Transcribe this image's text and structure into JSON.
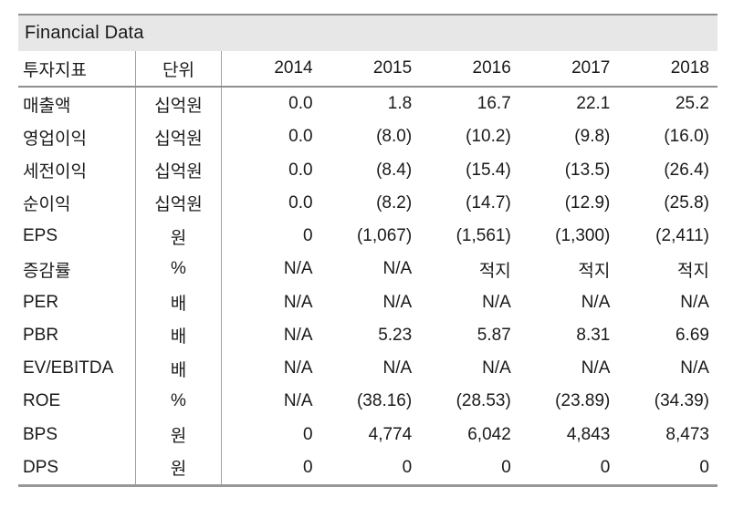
{
  "title": "Financial Data",
  "colors": {
    "title_background": "#e7e7e7",
    "border_dark": "#8f8f8f",
    "border_light": "#a0a0a0",
    "text": "#1a1a1a"
  },
  "table": {
    "header": {
      "metric": "투자지표",
      "unit": "단위",
      "years": [
        "2014",
        "2015",
        "2016",
        "2017",
        "2018"
      ]
    },
    "rows": [
      {
        "label": "매출액",
        "unit": "십억원",
        "values": [
          "0.0",
          "1.8",
          "16.7",
          "22.1",
          "25.2"
        ]
      },
      {
        "label": "영업이익",
        "unit": "십억원",
        "values": [
          "0.0",
          "(8.0)",
          "(10.2)",
          "(9.8)",
          "(16.0)"
        ]
      },
      {
        "label": "세전이익",
        "unit": "십억원",
        "values": [
          "0.0",
          "(8.4)",
          "(15.4)",
          "(13.5)",
          "(26.4)"
        ]
      },
      {
        "label": "순이익",
        "unit": "십억원",
        "values": [
          "0.0",
          "(8.2)",
          "(14.7)",
          "(12.9)",
          "(25.8)"
        ]
      },
      {
        "label": "EPS",
        "unit": "원",
        "values": [
          "0",
          "(1,067)",
          "(1,561)",
          "(1,300)",
          "(2,411)"
        ]
      },
      {
        "label": "증감률",
        "unit": "%",
        "values": [
          "N/A",
          "N/A",
          "적지",
          "적지",
          "적지"
        ]
      },
      {
        "label": "PER",
        "unit": "배",
        "values": [
          "N/A",
          "N/A",
          "N/A",
          "N/A",
          "N/A"
        ]
      },
      {
        "label": "PBR",
        "unit": "배",
        "values": [
          "N/A",
          "5.23",
          "5.87",
          "8.31",
          "6.69"
        ]
      },
      {
        "label": "EV/EBITDA",
        "unit": "배",
        "values": [
          "N/A",
          "N/A",
          "N/A",
          "N/A",
          "N/A"
        ]
      },
      {
        "label": "ROE",
        "unit": "%",
        "values": [
          "N/A",
          "(38.16)",
          "(28.53)",
          "(23.89)",
          "(34.39)"
        ]
      },
      {
        "label": "BPS",
        "unit": "원",
        "values": [
          "0",
          "4,774",
          "6,042",
          "4,843",
          "8,473"
        ]
      },
      {
        "label": "DPS",
        "unit": "원",
        "values": [
          "0",
          "0",
          "0",
          "0",
          "0"
        ]
      }
    ]
  }
}
